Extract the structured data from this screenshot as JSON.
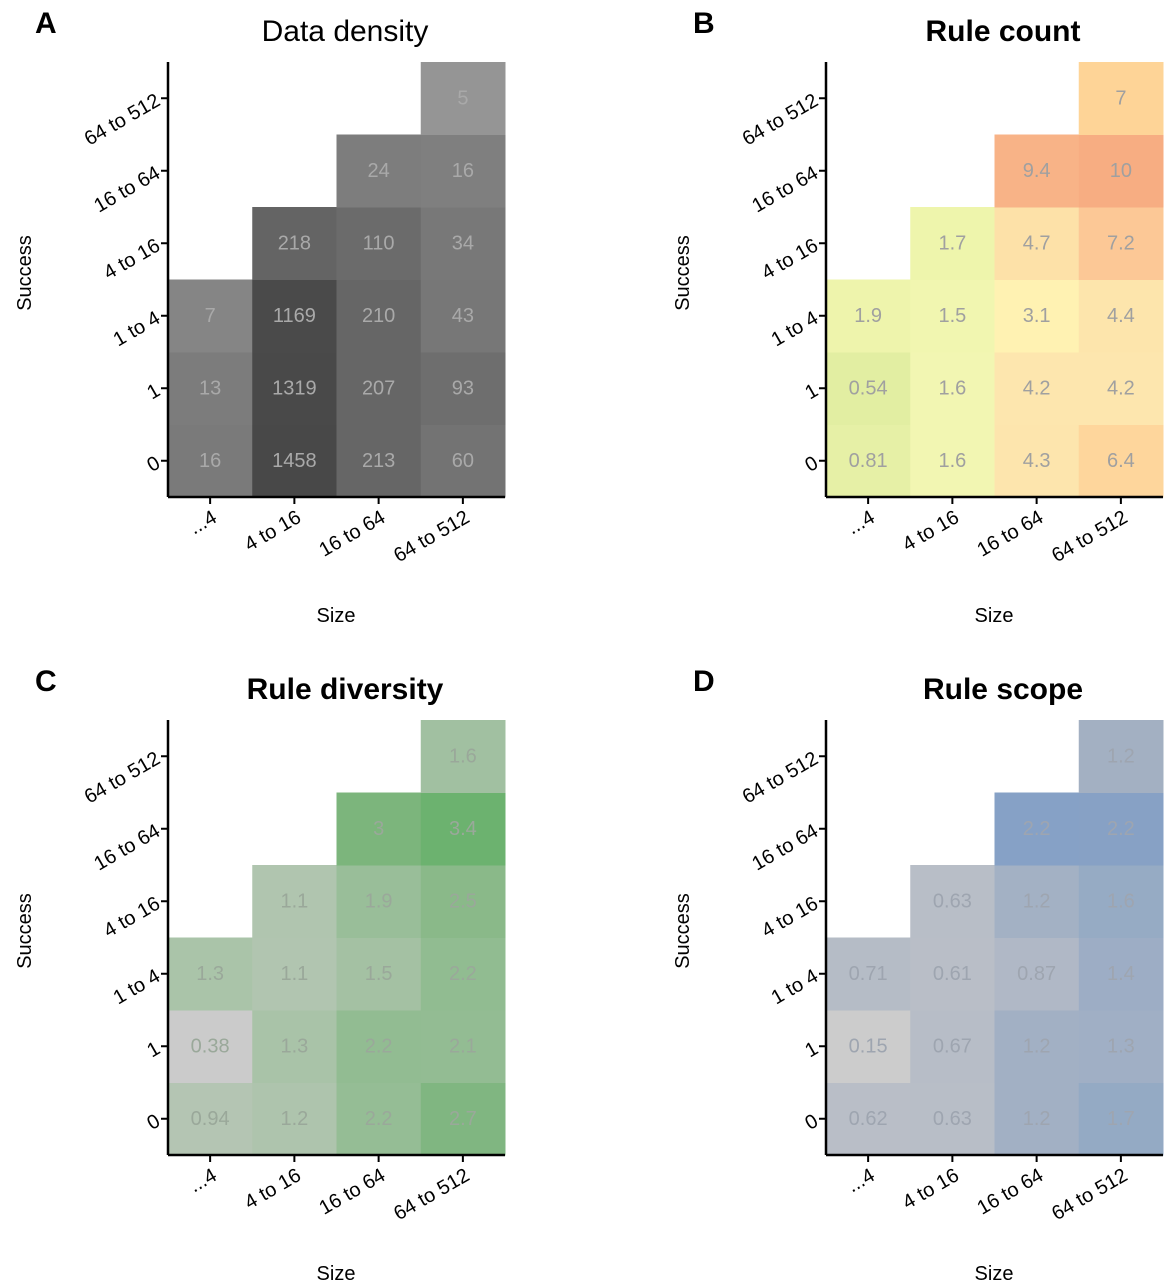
{
  "chart_data": [
    {
      "type": "heatmap",
      "panel_letter": "A",
      "title": "Data density",
      "title_bold": false,
      "xlabel": "Size",
      "ylabel": "Success",
      "x_categories": [
        "...4",
        "4 to 16",
        "16 to 64",
        "64 to 512"
      ],
      "y_categories": [
        "0",
        "1",
        "1 to 4",
        "4 to 16",
        "16 to 64",
        "64 to 512"
      ],
      "label_color": "#a9a9a9",
      "cells": [
        {
          "x": "...4",
          "y": "0",
          "value": "16",
          "color": "#7a7a7a"
        },
        {
          "x": "4 to 16",
          "y": "0",
          "value": "1458",
          "color": "#484848"
        },
        {
          "x": "16 to 64",
          "y": "0",
          "value": "213",
          "color": "#666666"
        },
        {
          "x": "64 to 512",
          "y": "0",
          "value": "60",
          "color": "#737373"
        },
        {
          "x": "...4",
          "y": "1",
          "value": "13",
          "color": "#7c7c7c"
        },
        {
          "x": "4 to 16",
          "y": "1",
          "value": "1319",
          "color": "#494949"
        },
        {
          "x": "16 to 64",
          "y": "1",
          "value": "207",
          "color": "#666666"
        },
        {
          "x": "64 to 512",
          "y": "1",
          "value": "93",
          "color": "#6e6e6e"
        },
        {
          "x": "...4",
          "y": "1 to 4",
          "value": "7",
          "color": "#858585"
        },
        {
          "x": "4 to 16",
          "y": "1 to 4",
          "value": "1169",
          "color": "#4a4a4a"
        },
        {
          "x": "16 to 64",
          "y": "1 to 4",
          "value": "210",
          "color": "#666666"
        },
        {
          "x": "64 to 512",
          "y": "1 to 4",
          "value": "43",
          "color": "#777777"
        },
        {
          "x": "4 to 16",
          "y": "4 to 16",
          "value": "218",
          "color": "#646464"
        },
        {
          "x": "16 to 64",
          "y": "4 to 16",
          "value": "110",
          "color": "#6b6b6b"
        },
        {
          "x": "64 to 512",
          "y": "4 to 16",
          "value": "34",
          "color": "#787878"
        },
        {
          "x": "16 to 64",
          "y": "16 to 64",
          "value": "24",
          "color": "#7d7d7d"
        },
        {
          "x": "64 to 512",
          "y": "16 to 64",
          "value": "16",
          "color": "#7f7f7f"
        },
        {
          "x": "64 to 512",
          "y": "64 to 512",
          "value": "5",
          "color": "#959595"
        }
      ]
    },
    {
      "type": "heatmap",
      "panel_letter": "B",
      "title": "Rule count",
      "title_bold": true,
      "xlabel": "Size",
      "ylabel": "Success",
      "x_categories": [
        "...4",
        "4 to 16",
        "16 to 64",
        "64 to 512"
      ],
      "y_categories": [
        "0",
        "1",
        "1 to 4",
        "4 to 16",
        "16 to 64",
        "64 to 512"
      ],
      "label_color": "#a0a0a0",
      "cells": [
        {
          "x": "...4",
          "y": "0",
          "value": "0.81",
          "color": "#e6f0a6"
        },
        {
          "x": "4 to 16",
          "y": "0",
          "value": "1.6",
          "color": "#f2f6b2"
        },
        {
          "x": "16 to 64",
          "y": "0",
          "value": "4.3",
          "color": "#fde5ad"
        },
        {
          "x": "64 to 512",
          "y": "0",
          "value": "6.4",
          "color": "#fed69c"
        },
        {
          "x": "...4",
          "y": "1",
          "value": "0.54",
          "color": "#e2eea2"
        },
        {
          "x": "4 to 16",
          "y": "1",
          "value": "1.6",
          "color": "#f2f6b2"
        },
        {
          "x": "16 to 64",
          "y": "1",
          "value": "4.2",
          "color": "#fde6ae"
        },
        {
          "x": "64 to 512",
          "y": "1",
          "value": "4.2",
          "color": "#fde6ae"
        },
        {
          "x": "...4",
          "y": "1 to 4",
          "value": "1.9",
          "color": "#eef4ac"
        },
        {
          "x": "4 to 16",
          "y": "1 to 4",
          "value": "1.5",
          "color": "#f1f6b0"
        },
        {
          "x": "16 to 64",
          "y": "1 to 4",
          "value": "3.1",
          "color": "#fff2b2"
        },
        {
          "x": "64 to 512",
          "y": "1 to 4",
          "value": "4.4",
          "color": "#fde5ac"
        },
        {
          "x": "4 to 16",
          "y": "4 to 16",
          "value": "1.7",
          "color": "#eef5ac"
        },
        {
          "x": "16 to 64",
          "y": "4 to 16",
          "value": "4.7",
          "color": "#fde1a8"
        },
        {
          "x": "64 to 512",
          "y": "4 to 16",
          "value": "7.2",
          "color": "#fcc896"
        },
        {
          "x": "16 to 64",
          "y": "16 to 64",
          "value": "9.4",
          "color": "#f8b387"
        },
        {
          "x": "64 to 512",
          "y": "16 to 64",
          "value": "10",
          "color": "#f7ad82"
        },
        {
          "x": "64 to 512",
          "y": "64 to 512",
          "value": "7",
          "color": "#fed497"
        }
      ]
    },
    {
      "type": "heatmap",
      "panel_letter": "C",
      "title": "Rule diversity",
      "title_bold": true,
      "xlabel": "Size",
      "ylabel": "Success",
      "x_categories": [
        "...4",
        "4 to 16",
        "16 to 64",
        "64 to 512"
      ],
      "y_categories": [
        "0",
        "1",
        "1 to 4",
        "4 to 16",
        "16 to 64",
        "64 to 512"
      ],
      "label_color": "#9aa89a",
      "cells": [
        {
          "x": "...4",
          "y": "0",
          "value": "0.94",
          "color": "#b4c5b3"
        },
        {
          "x": "4 to 16",
          "y": "0",
          "value": "1.2",
          "color": "#aec4ad"
        },
        {
          "x": "16 to 64",
          "y": "0",
          "value": "2.2",
          "color": "#95bd95"
        },
        {
          "x": "64 to 512",
          "y": "0",
          "value": "2.7",
          "color": "#80b681"
        },
        {
          "x": "...4",
          "y": "1",
          "value": "0.38",
          "color": "#cbcbcb"
        },
        {
          "x": "4 to 16",
          "y": "1",
          "value": "1.3",
          "color": "#a9c3a8"
        },
        {
          "x": "16 to 64",
          "y": "1",
          "value": "2.2",
          "color": "#92bc92"
        },
        {
          "x": "64 to 512",
          "y": "1",
          "value": "2.1",
          "color": "#93bc93"
        },
        {
          "x": "...4",
          "y": "1 to 4",
          "value": "1.3",
          "color": "#aac4a9"
        },
        {
          "x": "4 to 16",
          "y": "1 to 4",
          "value": "1.1",
          "color": "#b1c5b0"
        },
        {
          "x": "16 to 64",
          "y": "1 to 4",
          "value": "1.5",
          "color": "#a4c1a3"
        },
        {
          "x": "64 to 512",
          "y": "1 to 4",
          "value": "2.2",
          "color": "#91bc91"
        },
        {
          "x": "4 to 16",
          "y": "4 to 16",
          "value": "1.1",
          "color": "#b0c5af"
        },
        {
          "x": "16 to 64",
          "y": "4 to 16",
          "value": "1.9",
          "color": "#99be99"
        },
        {
          "x": "64 to 512",
          "y": "4 to 16",
          "value": "2.5",
          "color": "#8ab989"
        },
        {
          "x": "16 to 64",
          "y": "16 to 64",
          "value": "3",
          "color": "#7cb57c"
        },
        {
          "x": "64 to 512",
          "y": "16 to 64",
          "value": "3.4",
          "color": "#6cb26f"
        },
        {
          "x": "64 to 512",
          "y": "64 to 512",
          "value": "1.6",
          "color": "#a1c0a1"
        }
      ]
    },
    {
      "type": "heatmap",
      "panel_letter": "D",
      "title": "Rule scope",
      "title_bold": true,
      "xlabel": "Size",
      "ylabel": "Success",
      "x_categories": [
        "...4",
        "4 to 16",
        "16 to 64",
        "64 to 512"
      ],
      "y_categories": [
        "0",
        "1",
        "1 to 4",
        "4 to 16",
        "16 to 64",
        "64 to 512"
      ],
      "label_color": "#9ea5b0",
      "cells": [
        {
          "x": "...4",
          "y": "0",
          "value": "0.62",
          "color": "#b9bec7"
        },
        {
          "x": "4 to 16",
          "y": "0",
          "value": "0.63",
          "color": "#b8bec7"
        },
        {
          "x": "16 to 64",
          "y": "0",
          "value": "1.2",
          "color": "#a2b0c4"
        },
        {
          "x": "64 to 512",
          "y": "0",
          "value": "1.7",
          "color": "#94aac4"
        },
        {
          "x": "...4",
          "y": "1",
          "value": "0.15",
          "color": "#cccccc"
        },
        {
          "x": "4 to 16",
          "y": "1",
          "value": "0.67",
          "color": "#b7bdc7"
        },
        {
          "x": "16 to 64",
          "y": "1",
          "value": "1.2",
          "color": "#a2b0c4"
        },
        {
          "x": "64 to 512",
          "y": "1",
          "value": "1.3",
          "color": "#a0afc5"
        },
        {
          "x": "...4",
          "y": "1 to 4",
          "value": "0.71",
          "color": "#b5bcc6"
        },
        {
          "x": "4 to 16",
          "y": "1 to 4",
          "value": "0.61",
          "color": "#b9bec7"
        },
        {
          "x": "16 to 64",
          "y": "1 to 4",
          "value": "0.87",
          "color": "#b0b8c6"
        },
        {
          "x": "64 to 512",
          "y": "1 to 4",
          "value": "1.4",
          "color": "#9dadc5"
        },
        {
          "x": "4 to 16",
          "y": "4 to 16",
          "value": "0.63",
          "color": "#b8bec7"
        },
        {
          "x": "16 to 64",
          "y": "4 to 16",
          "value": "1.2",
          "color": "#a3b1c4"
        },
        {
          "x": "64 to 512",
          "y": "4 to 16",
          "value": "1.6",
          "color": "#96abc4"
        },
        {
          "x": "16 to 64",
          "y": "16 to 64",
          "value": "2.2",
          "color": "#86a1c6"
        },
        {
          "x": "64 to 512",
          "y": "16 to 64",
          "value": "2.2",
          "color": "#87a1c5"
        },
        {
          "x": "64 to 512",
          "y": "64 to 512",
          "value": "1.2",
          "color": "#a3b0c2"
        }
      ]
    }
  ]
}
